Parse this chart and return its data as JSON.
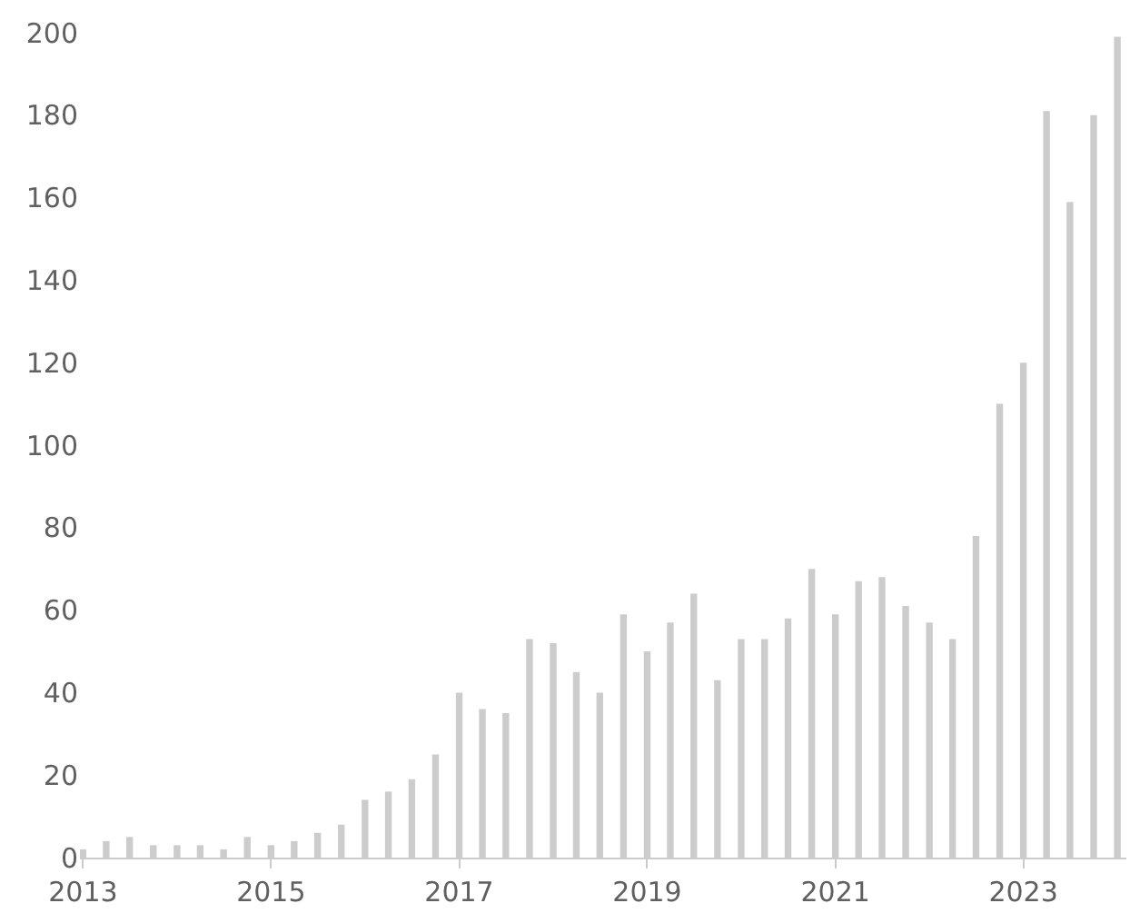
{
  "chart_data": {
    "type": "bar",
    "x": [
      "2013-01",
      "2013-04",
      "2013-07",
      "2013-10",
      "2014-01",
      "2014-04",
      "2014-07",
      "2014-10",
      "2015-01",
      "2015-04",
      "2015-07",
      "2015-10",
      "2016-01",
      "2016-04",
      "2016-07",
      "2016-10",
      "2017-01",
      "2017-04",
      "2017-07",
      "2017-10",
      "2018-01",
      "2018-04",
      "2018-07",
      "2018-10",
      "2019-01",
      "2019-04",
      "2019-07",
      "2019-10",
      "2020-01",
      "2020-04",
      "2020-07",
      "2020-10",
      "2021-01",
      "2021-04",
      "2021-07",
      "2021-10",
      "2022-01",
      "2022-04",
      "2022-07",
      "2022-10",
      "2023-01",
      "2023-04",
      "2023-07",
      "2023-10",
      "2024-01"
    ],
    "values": [
      2,
      4,
      5,
      3,
      3,
      3,
      2,
      5,
      3,
      4,
      6,
      8,
      14,
      16,
      19,
      25,
      40,
      36,
      35,
      53,
      52,
      45,
      40,
      59,
      50,
      57,
      64,
      43,
      53,
      53,
      58,
      70,
      59,
      67,
      68,
      61,
      57,
      53,
      78,
      110,
      120,
      181,
      159,
      180,
      199
    ],
    "color": "#cccccc",
    "xlim": [
      "2012-12-20",
      "2024-02-05"
    ],
    "xticks": [
      "2013",
      "2015",
      "2017",
      "2019",
      "2021",
      "2023"
    ],
    "ylim": [
      0,
      200
    ],
    "yticks": [
      0,
      20,
      40,
      60,
      80,
      100,
      120,
      140,
      160,
      180,
      200
    ]
  }
}
